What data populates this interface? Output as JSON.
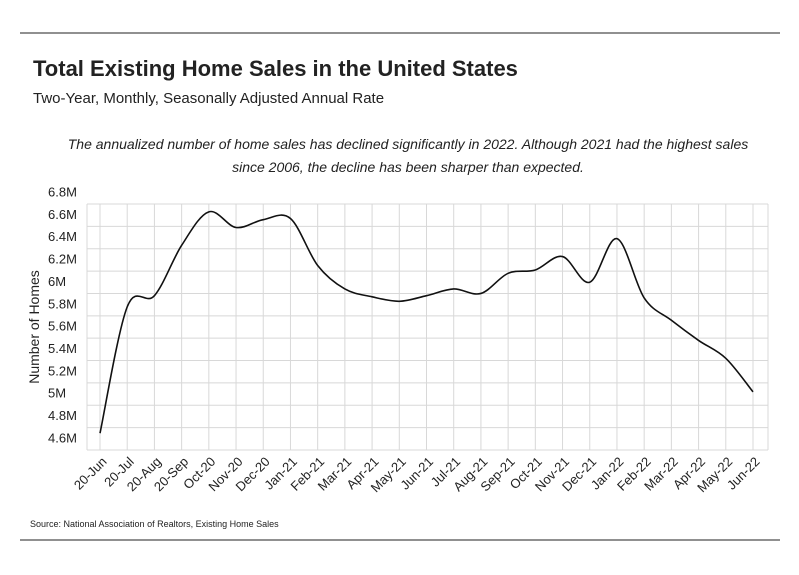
{
  "chart_data": {
    "type": "line",
    "title": "Total Existing Home Sales in the United States",
    "subtitle": "Two-Year, Monthly, Seasonally Adjusted Annual Rate",
    "annotation": [
      "The annualized number of home sales has declined significantly in 2022. Although 2021 had the highest sales",
      "since 2006, the decline has been sharper than expected."
    ],
    "y_label": "Number of Homes",
    "source": "Source:  National Association of Realtors, Existing Home Sales",
    "categories": [
      "20-Jun",
      "20-Jul",
      "20-Aug",
      "20-Sep",
      "Oct-20",
      "Nov-20",
      "Dec-20",
      "Jan-21",
      "Feb-21",
      "Mar-21",
      "Apr-21",
      "May-21",
      "Jun-21",
      "Jul-21",
      "Aug-21",
      "Sep-21",
      "Oct-21",
      "Nov-21",
      "Dec-21",
      "Jan-22",
      "Feb-22",
      "Mar-22",
      "Apr-22",
      "May-22",
      "Jun-22"
    ],
    "series": [
      {
        "name": "Existing Home Sales",
        "color": "#111111",
        "values": [
          4750000,
          5880000,
          5980000,
          6430000,
          6730000,
          6590000,
          6660000,
          6670000,
          6250000,
          6040000,
          5970000,
          5930000,
          5980000,
          6040000,
          6000000,
          6180000,
          6210000,
          6330000,
          6100000,
          6490000,
          5960000,
          5760000,
          5580000,
          5420000,
          5120000
        ]
      }
    ],
    "ylim": [
      4600000,
      6800000
    ],
    "yticks": [
      {
        "value": 4600000,
        "label": "4.6M"
      },
      {
        "value": 4800000,
        "label": "4.8M"
      },
      {
        "value": 5000000,
        "label": "5M"
      },
      {
        "value": 5200000,
        "label": "5.2M"
      },
      {
        "value": 5400000,
        "label": "5.4M"
      },
      {
        "value": 5600000,
        "label": "5.6M"
      },
      {
        "value": 5800000,
        "label": "5.8M"
      },
      {
        "value": 6000000,
        "label": "6M"
      },
      {
        "value": 6200000,
        "label": "6.2M"
      },
      {
        "value": 6400000,
        "label": "6.4M"
      },
      {
        "value": 6600000,
        "label": "6.6M"
      },
      {
        "value": 6800000,
        "label": "6.8M"
      }
    ],
    "grid": true
  }
}
